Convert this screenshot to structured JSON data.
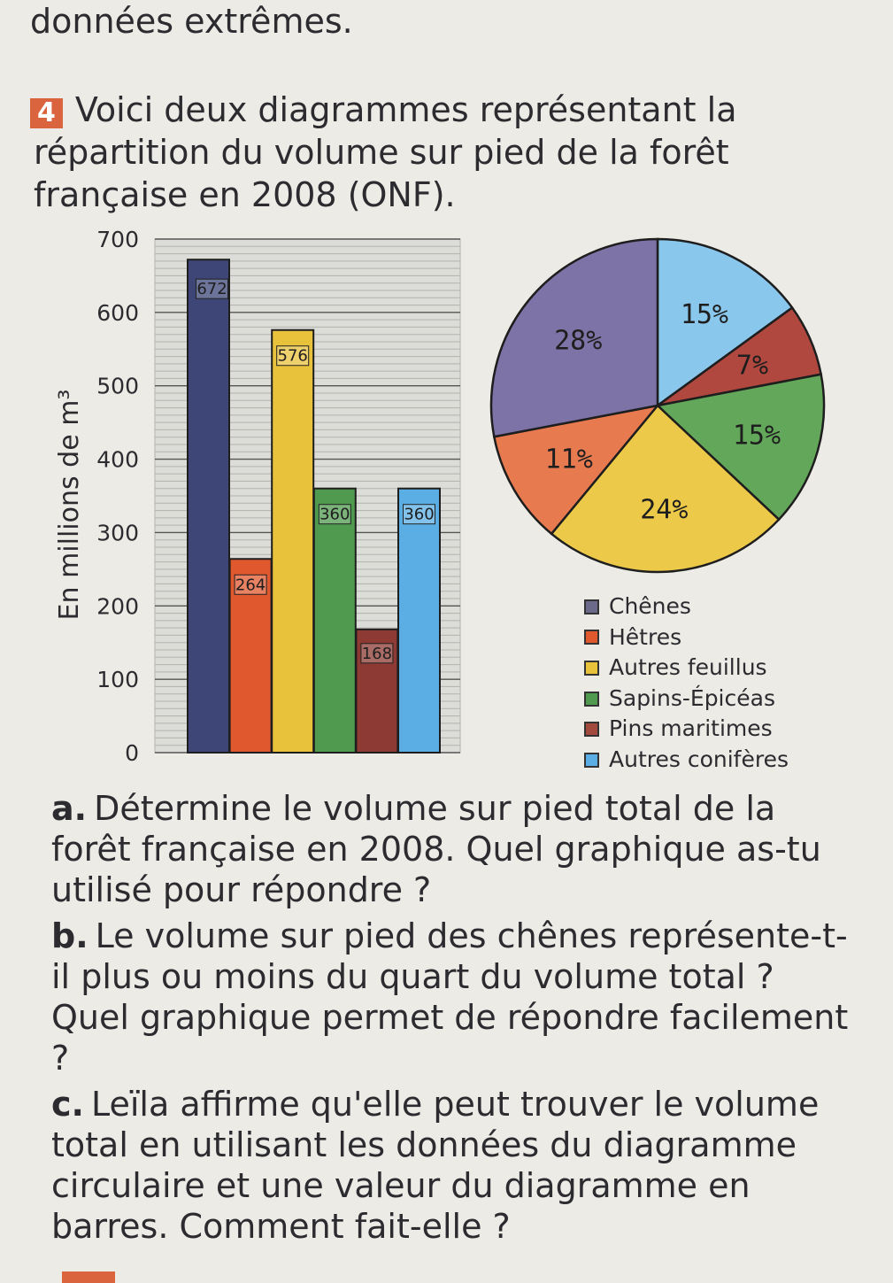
{
  "page": {
    "previous_line": "données extrêmes."
  },
  "exercise": {
    "number": "4",
    "text": "Voici deux diagrammes représentant la répartition du volume sur pied de la forêt française en 2008 (ONF)."
  },
  "chart_data": [
    {
      "type": "bar",
      "title": "",
      "ylabel": "En millions de m³",
      "ylim": [
        0,
        700
      ],
      "yticks": [
        0,
        100,
        200,
        300,
        400,
        500,
        600,
        700
      ],
      "grid": true,
      "categories": [
        "Chênes",
        "Hêtres",
        "Autres feuillus",
        "Sapins-Épicéas",
        "Pins maritimes",
        "Autres conifères"
      ],
      "values": [
        672,
        264,
        576,
        360,
        168,
        360
      ],
      "colors": [
        "#3d4677",
        "#e0582e",
        "#e8c23b",
        "#4f9a4f",
        "#8c3a33",
        "#5aaee3"
      ]
    },
    {
      "type": "pie",
      "title": "",
      "categories": [
        "Chênes",
        "Hêtres",
        "Autres feuillus",
        "Sapins-Épicéas",
        "Pins maritimes",
        "Autres conifères"
      ],
      "labels": [
        "28%",
        "11%",
        "24%",
        "15%",
        "7%",
        "15%"
      ],
      "values": [
        28,
        11,
        24,
        15,
        7,
        15
      ],
      "colors": [
        "#7d73a6",
        "#e87a50",
        "#ecc948",
        "#63a85a",
        "#b0483f",
        "#8ac7ec"
      ],
      "legend": "bottom-right"
    }
  ],
  "legend": [
    {
      "label": "Chênes",
      "color": "#6b6a8a"
    },
    {
      "label": "Hêtres",
      "color": "#e0582e"
    },
    {
      "label": "Autres feuillus",
      "color": "#e8c23b"
    },
    {
      "label": "Sapins-Épicéas",
      "color": "#4f9a4f"
    },
    {
      "label": "Pins maritimes",
      "color": "#a34a3e"
    },
    {
      "label": "Autres conifères",
      "color": "#5aaee3"
    }
  ],
  "questions": [
    {
      "letter": "a.",
      "text": "Détermine le volume sur pied total de la forêt française en 2008. Quel graphique as-tu utilisé pour répondre ?"
    },
    {
      "letter": "b.",
      "text": "Le volume sur pied des chênes représente-t-il plus ou moins du quart du volume total ? Quel graphique permet de répondre facilement ?"
    },
    {
      "letter": "c.",
      "text": "Leïla affirme qu'elle peut trouver le volume total en utilisant les données du diagramme circulaire et une valeur du diagramme en barres. Comment fait-elle ?"
    }
  ]
}
